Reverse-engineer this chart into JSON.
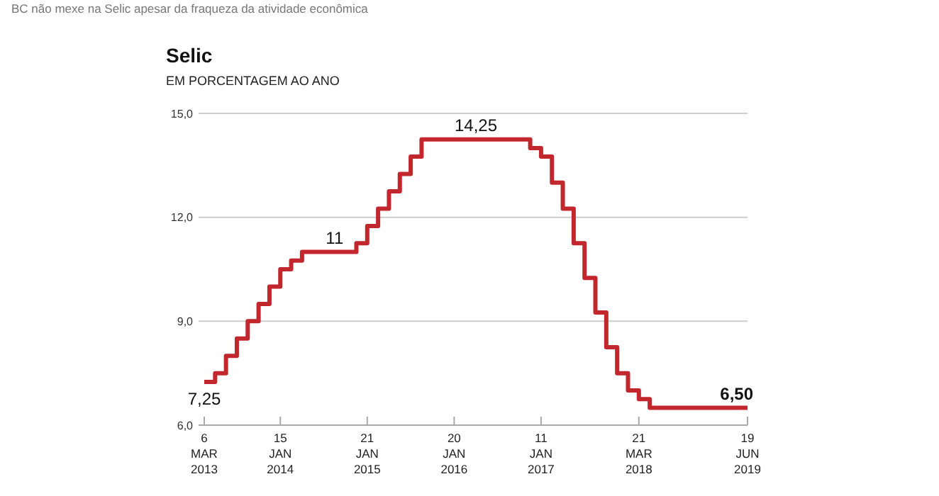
{
  "chart_data": {
    "type": "step",
    "title": "Selic",
    "subtitle": "EM PORCENTAGEM AO ANO",
    "annotations": [
      "BC não mexe na Selic apesar da fraqueza da atividade econômica"
    ],
    "categories": [
      "6 MAR 2013",
      null,
      null,
      null,
      null,
      null,
      null,
      "15 JAN 2014",
      null,
      null,
      null,
      null,
      null,
      null,
      null,
      "21 JAN 2015",
      null,
      null,
      null,
      null,
      null,
      null,
      null,
      "20 JAN 2016",
      null,
      null,
      null,
      null,
      null,
      null,
      null,
      "11 JAN 2017",
      null,
      null,
      null,
      null,
      null,
      null,
      null,
      null,
      "21 MAR 2018",
      null,
      null,
      null,
      null,
      null,
      null,
      null,
      null,
      null,
      "19 JUN 2019"
    ],
    "series": [
      {
        "color": "#c1272d",
        "values": [
          7.25,
          7.5,
          8,
          8.5,
          9,
          9.5,
          10,
          10.5,
          10.75,
          11,
          11,
          11,
          11,
          11,
          11.25,
          11.75,
          12.25,
          12.75,
          13.25,
          13.75,
          14.25,
          14.25,
          14.25,
          14.25,
          14.25,
          14.25,
          14.25,
          14.25,
          14.25,
          14.25,
          14,
          13.75,
          13,
          12.25,
          11.25,
          10.25,
          9.25,
          8.25,
          7.5,
          7,
          6.75,
          6.5,
          6.5,
          6.5,
          6.5,
          6.5,
          6.5,
          6.5,
          6.5,
          6.5,
          6.5
        ],
        "value_labels": [
          "7,25",
          null,
          null,
          null,
          null,
          null,
          null,
          null,
          null,
          null,
          null,
          null,
          "11",
          null,
          null,
          null,
          null,
          null,
          null,
          null,
          null,
          null,
          null,
          null,
          null,
          "14,25",
          null,
          null,
          null,
          null,
          null,
          null,
          null,
          null,
          null,
          null,
          null,
          null,
          null,
          null,
          null,
          null,
          null,
          null,
          null,
          null,
          null,
          null,
          null,
          null,
          "6,50"
        ]
      }
    ],
    "ylim": [
      6,
      15
    ],
    "yticks": [
      {
        "value": 6,
        "label": "6,0"
      },
      {
        "value": 9,
        "label": "9,0"
      },
      {
        "value": 12,
        "label": "12,0"
      },
      {
        "value": 15,
        "label": "15,0"
      }
    ],
    "grid": "y"
  }
}
